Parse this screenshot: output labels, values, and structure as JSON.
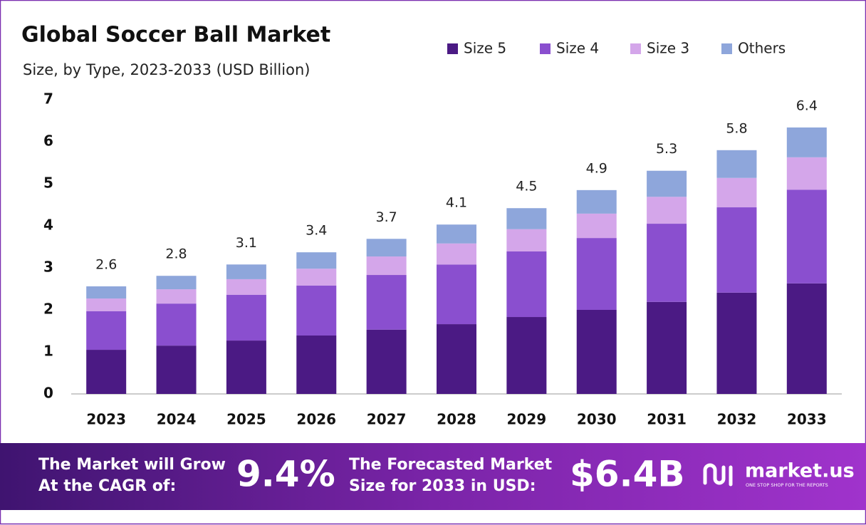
{
  "chart_data": {
    "type": "stacked-bar",
    "title": "Global Soccer Ball Market",
    "subtitle": "Size, by Type, 2023-2033 (USD Billion)",
    "categories": [
      "2023",
      "2024",
      "2025",
      "2026",
      "2027",
      "2028",
      "2029",
      "2030",
      "2031",
      "2032",
      "2033"
    ],
    "series": [
      {
        "name": "Size 5",
        "color": "#4b1a84",
        "values": [
          1.05,
          1.15,
          1.27,
          1.39,
          1.53,
          1.66,
          1.83,
          2.0,
          2.19,
          2.41,
          2.63
        ]
      },
      {
        "name": "Size 4",
        "color": "#8a4fcf",
        "values": [
          0.92,
          1.0,
          1.09,
          1.19,
          1.3,
          1.42,
          1.56,
          1.71,
          1.86,
          2.03,
          2.23
        ]
      },
      {
        "name": "Size 3",
        "color": "#d4a6ea",
        "values": [
          0.3,
          0.34,
          0.37,
          0.4,
          0.44,
          0.5,
          0.53,
          0.58,
          0.64,
          0.7,
          0.77
        ]
      },
      {
        "name": "Others",
        "color": "#8ea6db",
        "values": [
          0.29,
          0.32,
          0.35,
          0.39,
          0.42,
          0.45,
          0.5,
          0.56,
          0.62,
          0.66,
          0.71
        ]
      }
    ],
    "totals": [
      2.6,
      2.8,
      3.1,
      3.4,
      3.7,
      4.1,
      4.5,
      4.9,
      5.3,
      5.8,
      6.4
    ],
    "ylim": [
      0,
      7
    ],
    "yticks": [
      0,
      1,
      2,
      3,
      4,
      5,
      6,
      7
    ],
    "legend": "top-right"
  },
  "footer": {
    "cagr_text": [
      "The Market will Grow",
      "At the CAGR of:"
    ],
    "cagr_value": "9.4%",
    "forecast_text": [
      "The Forecasted Market",
      "Size for 2033 in USD:"
    ],
    "forecast_value": "$6.4B",
    "brand": "market.us",
    "tagline": "ONE STOP SHOP FOR THE REPORTS"
  }
}
